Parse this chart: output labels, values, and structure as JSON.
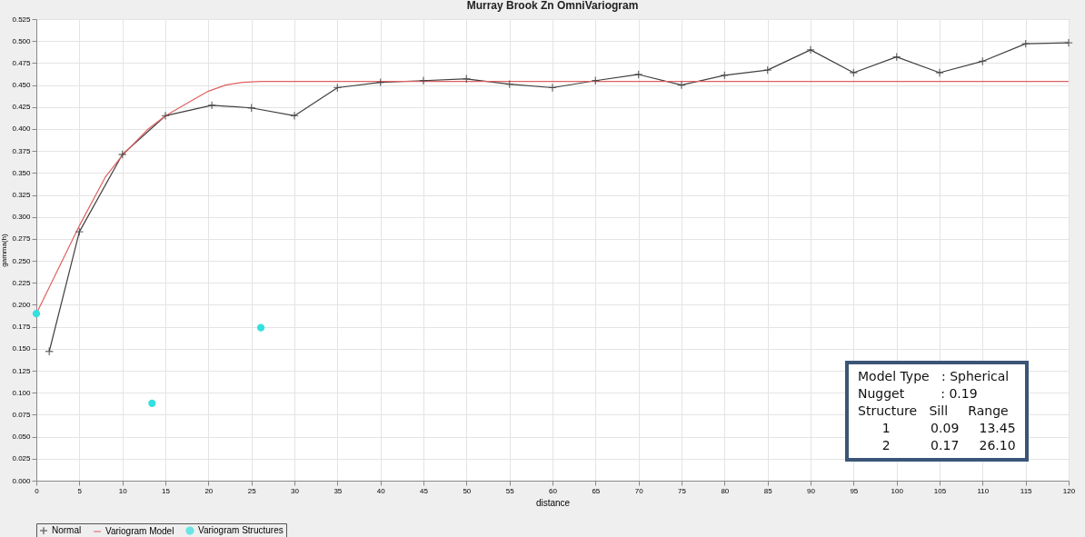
{
  "chart_data": {
    "type": "line",
    "title": "Murray Brook Zn OmniVariogram",
    "xlabel": "distance",
    "ylabel": "gamma(h)",
    "xlim": [
      0,
      120
    ],
    "xticks": [
      0,
      5,
      10,
      15,
      20,
      25,
      30,
      35,
      40,
      45,
      50,
      55,
      60,
      65,
      70,
      75,
      80,
      85,
      90,
      95,
      100,
      105,
      110,
      115,
      120
    ],
    "ylim": [
      0,
      0.525
    ],
    "yticks": [
      {
        "value": 0,
        "label": "0.000"
      },
      {
        "value": 0.025,
        "label": "0.025"
      },
      {
        "value": 0.05,
        "label": "0.050"
      },
      {
        "value": 0.075,
        "label": "0.075"
      },
      {
        "value": 0.1,
        "label": "0.100"
      },
      {
        "value": 0.125,
        "label": "0.125"
      },
      {
        "value": 0.15,
        "label": "0.150"
      },
      {
        "value": 0.175,
        "label": "0.175"
      },
      {
        "value": 0.2,
        "label": "0.200"
      },
      {
        "value": 0.225,
        "label": "0.225"
      },
      {
        "value": 0.25,
        "label": "0.250"
      },
      {
        "value": 0.275,
        "label": "0.275"
      },
      {
        "value": 0.3,
        "label": "0.300"
      },
      {
        "value": 0.325,
        "label": "0.325"
      },
      {
        "value": 0.35,
        "label": "0.350"
      },
      {
        "value": 0.375,
        "label": "0.375"
      },
      {
        "value": 0.4,
        "label": "0.400"
      },
      {
        "value": 0.425,
        "label": "0.425"
      },
      {
        "value": 0.45,
        "label": "0.450"
      },
      {
        "value": 0.475,
        "label": "0.475"
      },
      {
        "value": 0.5,
        "label": "0.500"
      },
      {
        "value": 0.525,
        "label": "0.525"
      }
    ],
    "grid": true,
    "legend": "bottom",
    "series": [
      {
        "name": "Normal",
        "marker": "cross",
        "color": "#404040",
        "x": [
          1.5,
          5,
          10,
          15,
          20.4,
          25,
          30,
          35,
          40,
          45,
          50,
          55,
          60,
          65,
          70,
          75,
          80,
          85,
          90,
          95,
          100,
          105,
          110,
          115,
          120
        ],
        "values": [
          0.147,
          0.283,
          0.371,
          0.415,
          0.427,
          0.424,
          0.415,
          0.447,
          0.453,
          0.455,
          0.457,
          0.451,
          0.447,
          0.455,
          0.462,
          0.45,
          0.461,
          0.467,
          0.49,
          0.464,
          0.482,
          0.464,
          0.477,
          0.497,
          0.498
        ]
      },
      {
        "name": "Variogram Model",
        "marker": "none",
        "color": "#e06060",
        "x": [
          0,
          2,
          5,
          8,
          10,
          13,
          15,
          18,
          20,
          22,
          24,
          26.1,
          120
        ],
        "values": [
          0.19,
          0.23,
          0.29,
          0.345,
          0.37,
          0.4,
          0.415,
          0.432,
          0.443,
          0.45,
          0.453,
          0.454,
          0.454
        ]
      },
      {
        "name": "Variogram Structures",
        "type": "scatter",
        "marker": "circle",
        "color": "#33e0e0",
        "x": [
          0,
          13.45,
          26.1
        ],
        "values": [
          0.19,
          0.088,
          0.174
        ]
      }
    ],
    "annotations": [
      "Model Type   : Spherical",
      "Nugget         : 0.19",
      "Structure   Sill     Range",
      "      1          0.09     13.45",
      "      2          0.17     26.10"
    ]
  }
}
